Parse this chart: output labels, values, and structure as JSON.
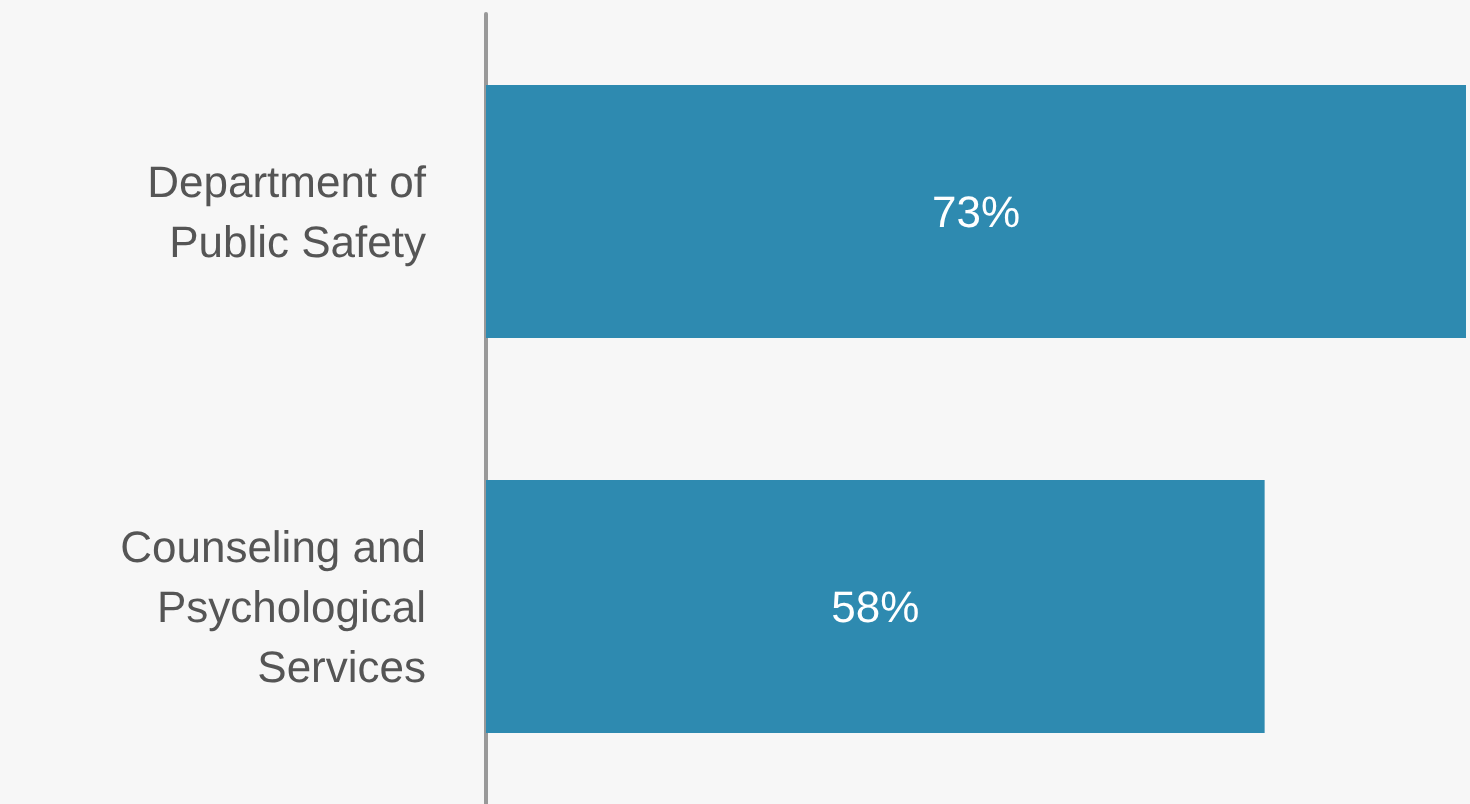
{
  "chart_data": {
    "type": "bar",
    "orientation": "horizontal",
    "categories": [
      "Department of Public Safety",
      "Counseling and Psychological Services"
    ],
    "values": [
      73,
      58
    ],
    "value_labels": [
      "73%",
      "58%"
    ],
    "color": "#2e8ab0"
  }
}
